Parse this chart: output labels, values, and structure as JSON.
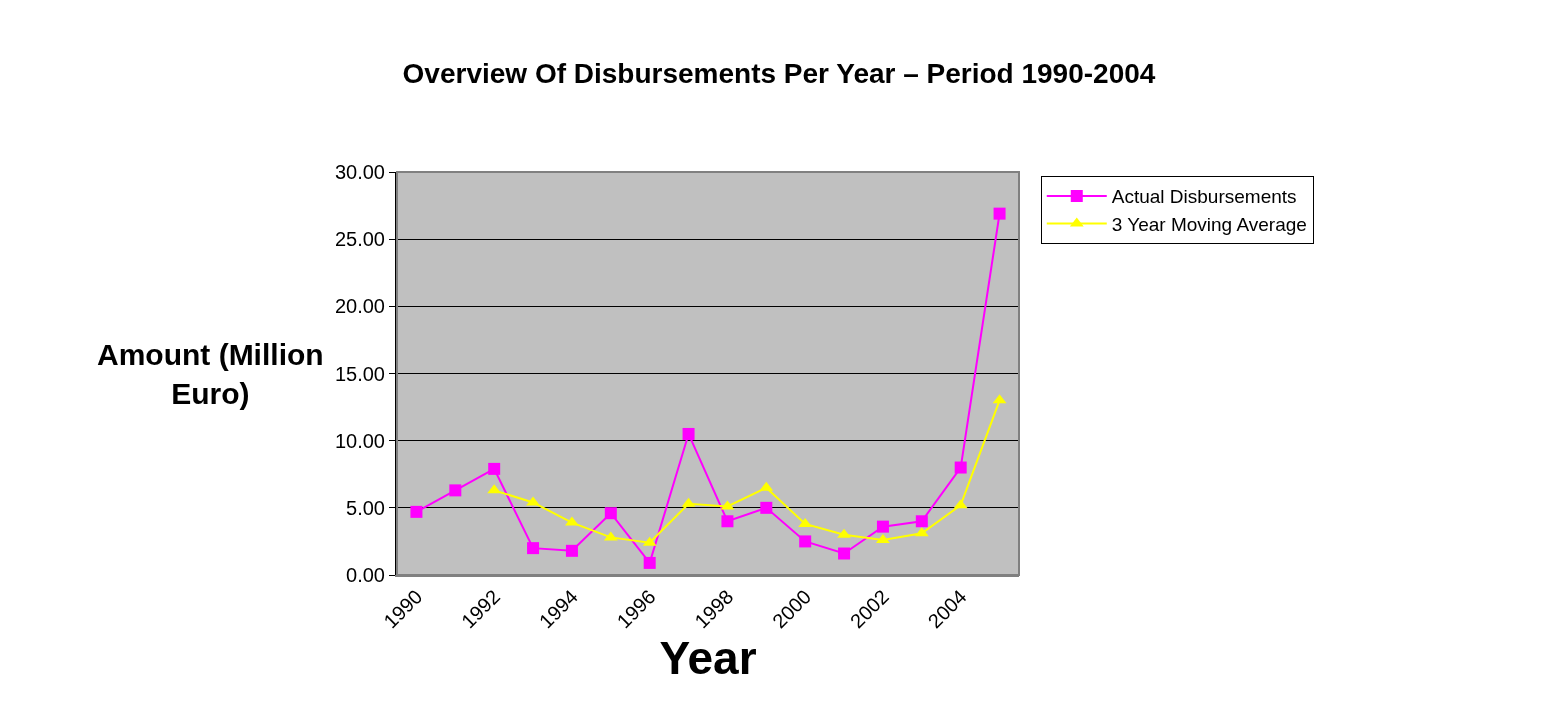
{
  "chart_data": {
    "type": "line",
    "title": "Overview Of Disbursements Per Year – Period 1990-2004",
    "xlabel": "Year",
    "ylabel": "Amount (Million Euro)",
    "categories": [
      "1990",
      null,
      "1992",
      null,
      "1994",
      null,
      "1996",
      null,
      "1998",
      null,
      "2000",
      null,
      "2002",
      null,
      "2004",
      null
    ],
    "series": [
      {
        "name": "Actual Disbursements",
        "color": "#ff00ff",
        "marker": "square",
        "values": [
          4.7,
          6.3,
          7.9,
          2.0,
          1.8,
          4.6,
          0.9,
          10.5,
          4.0,
          5.0,
          2.5,
          1.6,
          3.6,
          4.0,
          8.0,
          26.9
        ]
      },
      {
        "name": "3 Year Moving Average",
        "color": "#ffff00",
        "marker": "triangle",
        "values": [
          null,
          null,
          6.3,
          5.4,
          3.9,
          2.8,
          2.4,
          5.3,
          5.1,
          6.5,
          3.8,
          3.0,
          2.6,
          3.1,
          5.2,
          13.0
        ]
      }
    ],
    "ylim": [
      0,
      30
    ],
    "yticks": [
      {
        "value": 0,
        "label": "0.00"
      },
      {
        "value": 5,
        "label": "5.00"
      },
      {
        "value": 10,
        "label": "10.00"
      },
      {
        "value": 15,
        "label": "15.00"
      },
      {
        "value": 20,
        "label": "20.00"
      },
      {
        "value": 25,
        "label": "25.00"
      },
      {
        "value": 30,
        "label": "30.00"
      }
    ],
    "grid": "y",
    "legend": "right",
    "line_style": "solid"
  }
}
